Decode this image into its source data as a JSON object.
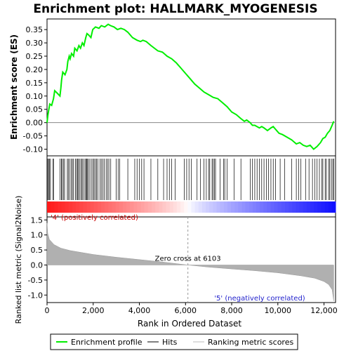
{
  "chart_data": {
    "type": "line",
    "title": "Enrichment plot: HALLMARK_MYOGENESIS",
    "es_panel": {
      "ylabel": "Enrichment score (ES)",
      "ylim": [
        -0.125,
        0.39
      ],
      "yticks": [
        -0.1,
        -0.05,
        0.0,
        0.05,
        0.1,
        0.15,
        0.2,
        0.25,
        0.3,
        0.35
      ],
      "ytick_labels": [
        "-0.10",
        "-0.05",
        "0.00",
        "0.05",
        "0.10",
        "0.15",
        "0.20",
        "0.25",
        "0.30",
        "0.35"
      ],
      "series_name": "Enrichment profile",
      "color": "#00ee00",
      "points": [
        [
          0,
          0.0
        ],
        [
          40,
          0.03
        ],
        [
          80,
          0.05
        ],
        [
          120,
          0.07
        ],
        [
          200,
          0.065
        ],
        [
          280,
          0.09
        ],
        [
          330,
          0.12
        ],
        [
          450,
          0.11
        ],
        [
          560,
          0.1
        ],
        [
          600,
          0.13
        ],
        [
          630,
          0.16
        ],
        [
          680,
          0.19
        ],
        [
          780,
          0.18
        ],
        [
          860,
          0.2
        ],
        [
          900,
          0.23
        ],
        [
          960,
          0.25
        ],
        [
          1000,
          0.24
        ],
        [
          1060,
          0.26
        ],
        [
          1150,
          0.25
        ],
        [
          1200,
          0.28
        ],
        [
          1300,
          0.27
        ],
        [
          1380,
          0.29
        ],
        [
          1450,
          0.28
        ],
        [
          1530,
          0.3
        ],
        [
          1600,
          0.29
        ],
        [
          1680,
          0.32
        ],
        [
          1730,
          0.335
        ],
        [
          1800,
          0.33
        ],
        [
          1900,
          0.32
        ],
        [
          1980,
          0.35
        ],
        [
          2100,
          0.36
        ],
        [
          2250,
          0.355
        ],
        [
          2350,
          0.365
        ],
        [
          2500,
          0.36
        ],
        [
          2650,
          0.37
        ],
        [
          2750,
          0.365
        ],
        [
          2900,
          0.36
        ],
        [
          3050,
          0.35
        ],
        [
          3200,
          0.355
        ],
        [
          3350,
          0.35
        ],
        [
          3500,
          0.34
        ],
        [
          3700,
          0.32
        ],
        [
          3900,
          0.31
        ],
        [
          4050,
          0.305
        ],
        [
          4150,
          0.31
        ],
        [
          4300,
          0.305
        ],
        [
          4500,
          0.29
        ],
        [
          4800,
          0.27
        ],
        [
          5000,
          0.265
        ],
        [
          5200,
          0.25
        ],
        [
          5400,
          0.24
        ],
        [
          5600,
          0.225
        ],
        [
          5800,
          0.205
        ],
        [
          6000,
          0.185
        ],
        [
          6200,
          0.165
        ],
        [
          6400,
          0.145
        ],
        [
          6600,
          0.13
        ],
        [
          6800,
          0.115
        ],
        [
          7000,
          0.105
        ],
        [
          7200,
          0.095
        ],
        [
          7400,
          0.09
        ],
        [
          7600,
          0.075
        ],
        [
          7800,
          0.06
        ],
        [
          8000,
          0.04
        ],
        [
          8200,
          0.03
        ],
        [
          8400,
          0.015
        ],
        [
          8550,
          0.005
        ],
        [
          8650,
          0.01
        ],
        [
          8800,
          0.0
        ],
        [
          8900,
          -0.01
        ],
        [
          9000,
          -0.01
        ],
        [
          9200,
          -0.02
        ],
        [
          9300,
          -0.015
        ],
        [
          9400,
          -0.02
        ],
        [
          9550,
          -0.03
        ],
        [
          9700,
          -0.02
        ],
        [
          9800,
          -0.015
        ],
        [
          9900,
          -0.025
        ],
        [
          10050,
          -0.04
        ],
        [
          10200,
          -0.045
        ],
        [
          10400,
          -0.055
        ],
        [
          10600,
          -0.065
        ],
        [
          10800,
          -0.08
        ],
        [
          10950,
          -0.075
        ],
        [
          11100,
          -0.085
        ],
        [
          11250,
          -0.09
        ],
        [
          11400,
          -0.085
        ],
        [
          11550,
          -0.1
        ],
        [
          11700,
          -0.09
        ],
        [
          11850,
          -0.075
        ],
        [
          11950,
          -0.06
        ],
        [
          12050,
          -0.055
        ],
        [
          12150,
          -0.04
        ],
        [
          12250,
          -0.03
        ],
        [
          12350,
          -0.01
        ],
        [
          12420,
          0.005
        ]
      ]
    },
    "hits_panel": {
      "positions": [
        30,
        70,
        100,
        150,
        260,
        280,
        560,
        620,
        650,
        720,
        760,
        880,
        920,
        980,
        1050,
        1100,
        1150,
        1230,
        1280,
        1330,
        1360,
        1420,
        1470,
        1520,
        1560,
        1640,
        1680,
        1720,
        1750,
        1800,
        1860,
        1940,
        2000,
        2040,
        2100,
        2150,
        2200,
        2300,
        2350,
        2420,
        2480,
        2560,
        2620,
        2680,
        2760,
        3000,
        3080,
        3150,
        3500,
        3800,
        3900,
        4000,
        4100,
        4200,
        4500,
        4800,
        5050,
        5200,
        5300,
        5400,
        5550,
        5950,
        6050,
        6150,
        6250,
        6500,
        6650,
        6800,
        6900,
        7000,
        7050,
        7150,
        7200,
        7250,
        7300,
        7500,
        7650,
        7700,
        7800,
        8100,
        8400,
        8800,
        8900,
        9000,
        9100,
        9200,
        9300,
        9400,
        9500,
        9600,
        9700,
        9800,
        9900,
        10100,
        10300,
        10600,
        10800,
        10900,
        11000,
        11200,
        11350,
        11500,
        11600,
        11700,
        11800,
        11900,
        11950,
        12050,
        12100,
        12200,
        12250,
        12320,
        12380,
        12420
      ]
    },
    "rank_panel": {
      "ylabel": "Ranked list metric (Signal2Noise)",
      "xlabel": "Rank in Ordered Dataset",
      "ylim": [
        -1.25,
        1.6
      ],
      "yticks": [
        -1.0,
        -0.5,
        0.0,
        0.5,
        1.0,
        1.5
      ],
      "ytick_labels": [
        "-1.0",
        "-0.5",
        "0.0",
        "0.5",
        "1.0",
        "1.5"
      ],
      "xlim": [
        0,
        12500
      ],
      "xticks": [
        0,
        2000,
        4000,
        6000,
        8000,
        10000,
        12000
      ],
      "xtick_labels": [
        "0",
        "2,000",
        "4,000",
        "6,000",
        "8,000",
        "10,000",
        "12,000"
      ],
      "metric_points": [
        [
          0,
          1.4
        ],
        [
          30,
          1.05
        ],
        [
          100,
          0.85
        ],
        [
          300,
          0.68
        ],
        [
          600,
          0.56
        ],
        [
          1000,
          0.48
        ],
        [
          2000,
          0.35
        ],
        [
          3000,
          0.26
        ],
        [
          4000,
          0.18
        ],
        [
          5000,
          0.1
        ],
        [
          6103,
          0.0
        ],
        [
          7000,
          -0.07
        ],
        [
          8000,
          -0.13
        ],
        [
          9000,
          -0.19
        ],
        [
          10000,
          -0.26
        ],
        [
          11000,
          -0.36
        ],
        [
          11600,
          -0.44
        ],
        [
          12000,
          -0.55
        ],
        [
          12200,
          -0.65
        ],
        [
          12350,
          -0.82
        ],
        [
          12420,
          -1.2
        ]
      ],
      "zero_cross_label": "Zero cross at 6103",
      "zero_cross_rank": 6103,
      "pos_label": "'4' (positively correlated)",
      "neg_label": "'5' (negatively correlated)"
    },
    "legend": {
      "enrichment_label": "Enrichment profile",
      "hits_label": "Hits",
      "ranking_label": "Ranking metric scores"
    }
  }
}
